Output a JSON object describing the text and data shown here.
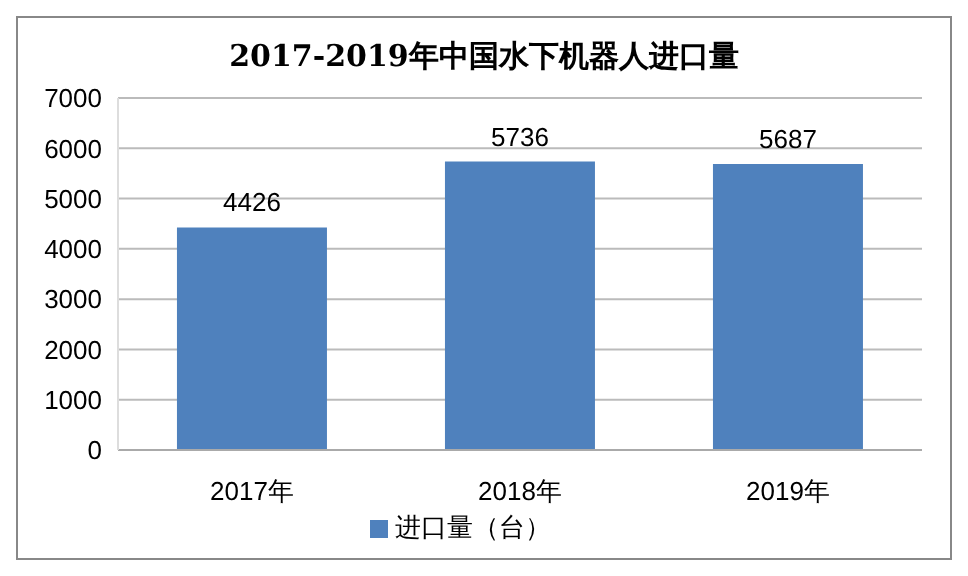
{
  "chart_data": {
    "type": "bar",
    "title": "2017-2019年中国水下机器人进口量",
    "categories": [
      "2017年",
      "2018年",
      "2019年"
    ],
    "series": [
      {
        "name": "进口量（台）",
        "color": "#4f81bd",
        "values": [
          4426,
          5736,
          5687
        ]
      }
    ],
    "ylim": [
      0,
      7000
    ],
    "yticks": [
      0,
      1000,
      2000,
      3000,
      4000,
      5000,
      6000,
      7000
    ],
    "grid": "y",
    "legend": "bottom",
    "data_labels": true
  }
}
